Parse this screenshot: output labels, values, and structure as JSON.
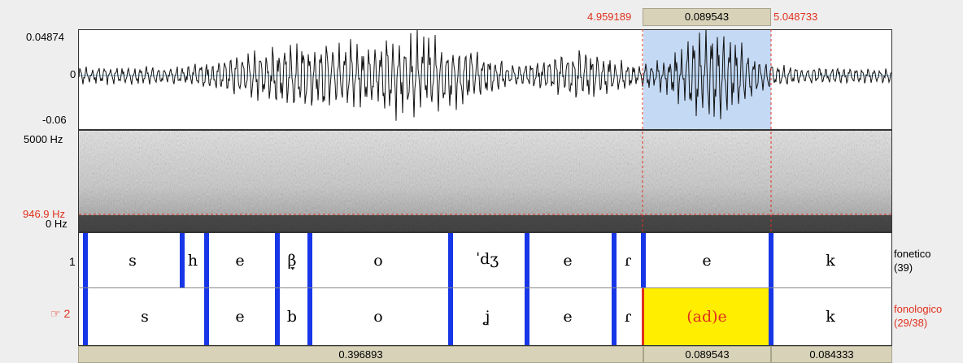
{
  "selection": {
    "start": "4.959189",
    "duration": "0.089543",
    "end": "5.048733"
  },
  "waveform": {
    "y_max": "0.04874",
    "y_zero": "0",
    "y_min": "-0.06"
  },
  "spectrogram": {
    "f_max": "5000 Hz",
    "cursor_freq": "946.9 Hz",
    "f_min": "0 Hz"
  },
  "tiers": [
    {
      "number": "1",
      "name": "fonetico",
      "count": "(39)",
      "segments": [
        "s",
        "h",
        "e",
        "β̞",
        "o",
        "ˈdʒ",
        "e",
        "ɾ",
        "e",
        "k"
      ]
    },
    {
      "number": "2",
      "marker": "☞",
      "name": "fonologico",
      "count": "(29/38)",
      "segments": [
        "s",
        "e",
        "b",
        "o",
        "ʝ",
        "e",
        "ɾ",
        "(ad)e",
        "k"
      ]
    }
  ],
  "bottom_bar": {
    "visible_part": "0.396893",
    "selection": "0.089543",
    "after": "0.084333"
  },
  "colors": {
    "selection_fill": "#c4d9f4",
    "boundary": "#1736e8",
    "highlight": "#ffee00",
    "red_text": "#e0301e"
  }
}
